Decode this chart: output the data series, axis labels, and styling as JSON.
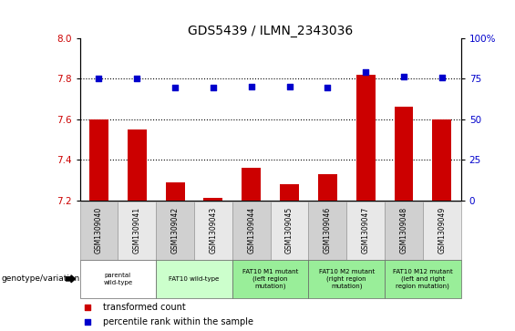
{
  "title": "GDS5439 / ILMN_2343036",
  "samples": [
    "GSM1309040",
    "GSM1309041",
    "GSM1309042",
    "GSM1309043",
    "GSM1309044",
    "GSM1309045",
    "GSM1309046",
    "GSM1309047",
    "GSM1309048",
    "GSM1309049"
  ],
  "red_values": [
    7.6,
    7.55,
    7.29,
    7.21,
    7.36,
    7.28,
    7.33,
    7.82,
    7.66,
    7.6
  ],
  "blue_values": [
    75.0,
    75.0,
    69.5,
    69.5,
    70.0,
    70.0,
    69.5,
    79.0,
    76.0,
    75.5
  ],
  "ylim_left": [
    7.2,
    8.0
  ],
  "ylim_right": [
    0,
    100
  ],
  "yticks_left": [
    7.2,
    7.4,
    7.6,
    7.8,
    8.0
  ],
  "yticks_right": [
    0,
    25,
    50,
    75,
    100
  ],
  "ytick_labels_right": [
    "0",
    "25",
    "50",
    "75",
    "100%"
  ],
  "bar_color": "#cc0000",
  "dot_color": "#0000cc",
  "gridline_y": [
    7.4,
    7.6,
    7.8
  ],
  "groups": [
    {
      "label": "parental\nwild-type",
      "start": 0,
      "end": 1,
      "color": "#ffffff"
    },
    {
      "label": "FAT10 wild-type",
      "start": 2,
      "end": 3,
      "color": "#ccffcc"
    },
    {
      "label": "FAT10 M1 mutant\n(left region\nmutation)",
      "start": 4,
      "end": 5,
      "color": "#99ee99"
    },
    {
      "label": "FAT10 M2 mutant\n(right region\nmutation)",
      "start": 6,
      "end": 7,
      "color": "#99ee99"
    },
    {
      "label": "FAT10 M12 mutant\n(left and right\nregion mutation)",
      "start": 8,
      "end": 9,
      "color": "#99ee99"
    }
  ],
  "genotype_label": "genotype/variation",
  "legend_red": "transformed count",
  "legend_blue": "percentile rank within the sample",
  "bar_width": 0.5
}
